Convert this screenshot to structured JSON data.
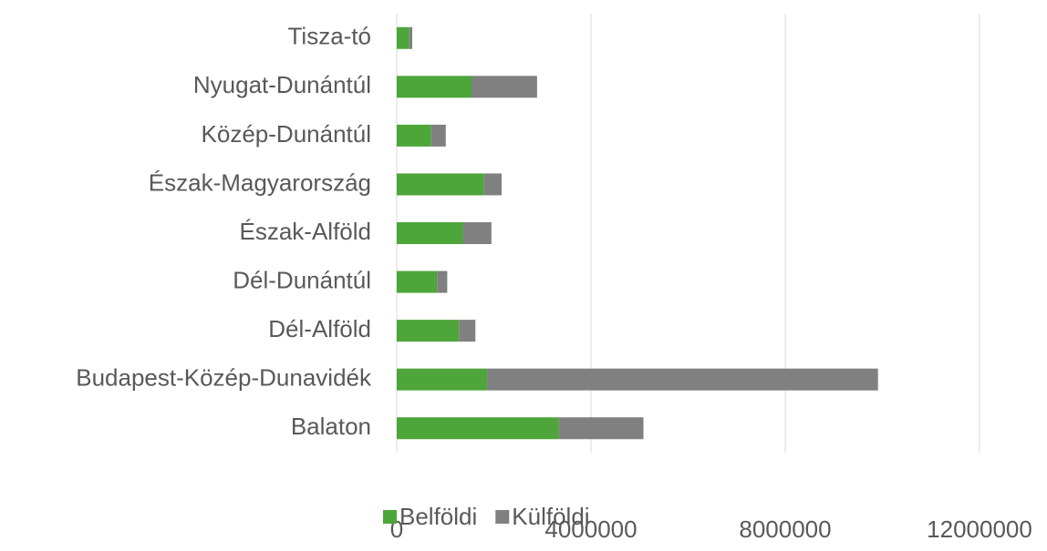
{
  "chart_data": {
    "type": "bar",
    "orientation": "horizontal",
    "stacked": true,
    "categories": [
      "Balaton",
      "Budapest-Közép-Dunavidék",
      "Dél-Alföld",
      "Dél-Dunántúl",
      "Észak-Alföld",
      "Észak-Magyarország",
      "Közép-Dunántúl",
      "Nyugat-Dunántúl",
      "Tisza-tó"
    ],
    "series": [
      {
        "name": "Belföldi",
        "color": "#4ea53a",
        "values": [
          3340000,
          1860000,
          1280000,
          830000,
          1370000,
          1800000,
          710000,
          1540000,
          260000
        ]
      },
      {
        "name": "Külföldi",
        "color": "#808080",
        "values": [
          1740000,
          8050000,
          340000,
          210000,
          580000,
          360000,
          300000,
          1350000,
          60000
        ]
      }
    ],
    "xlim": [
      0,
      12000000
    ],
    "xticks": [
      0,
      4000000,
      8000000,
      12000000
    ],
    "grid": true,
    "legend": "bottom"
  }
}
